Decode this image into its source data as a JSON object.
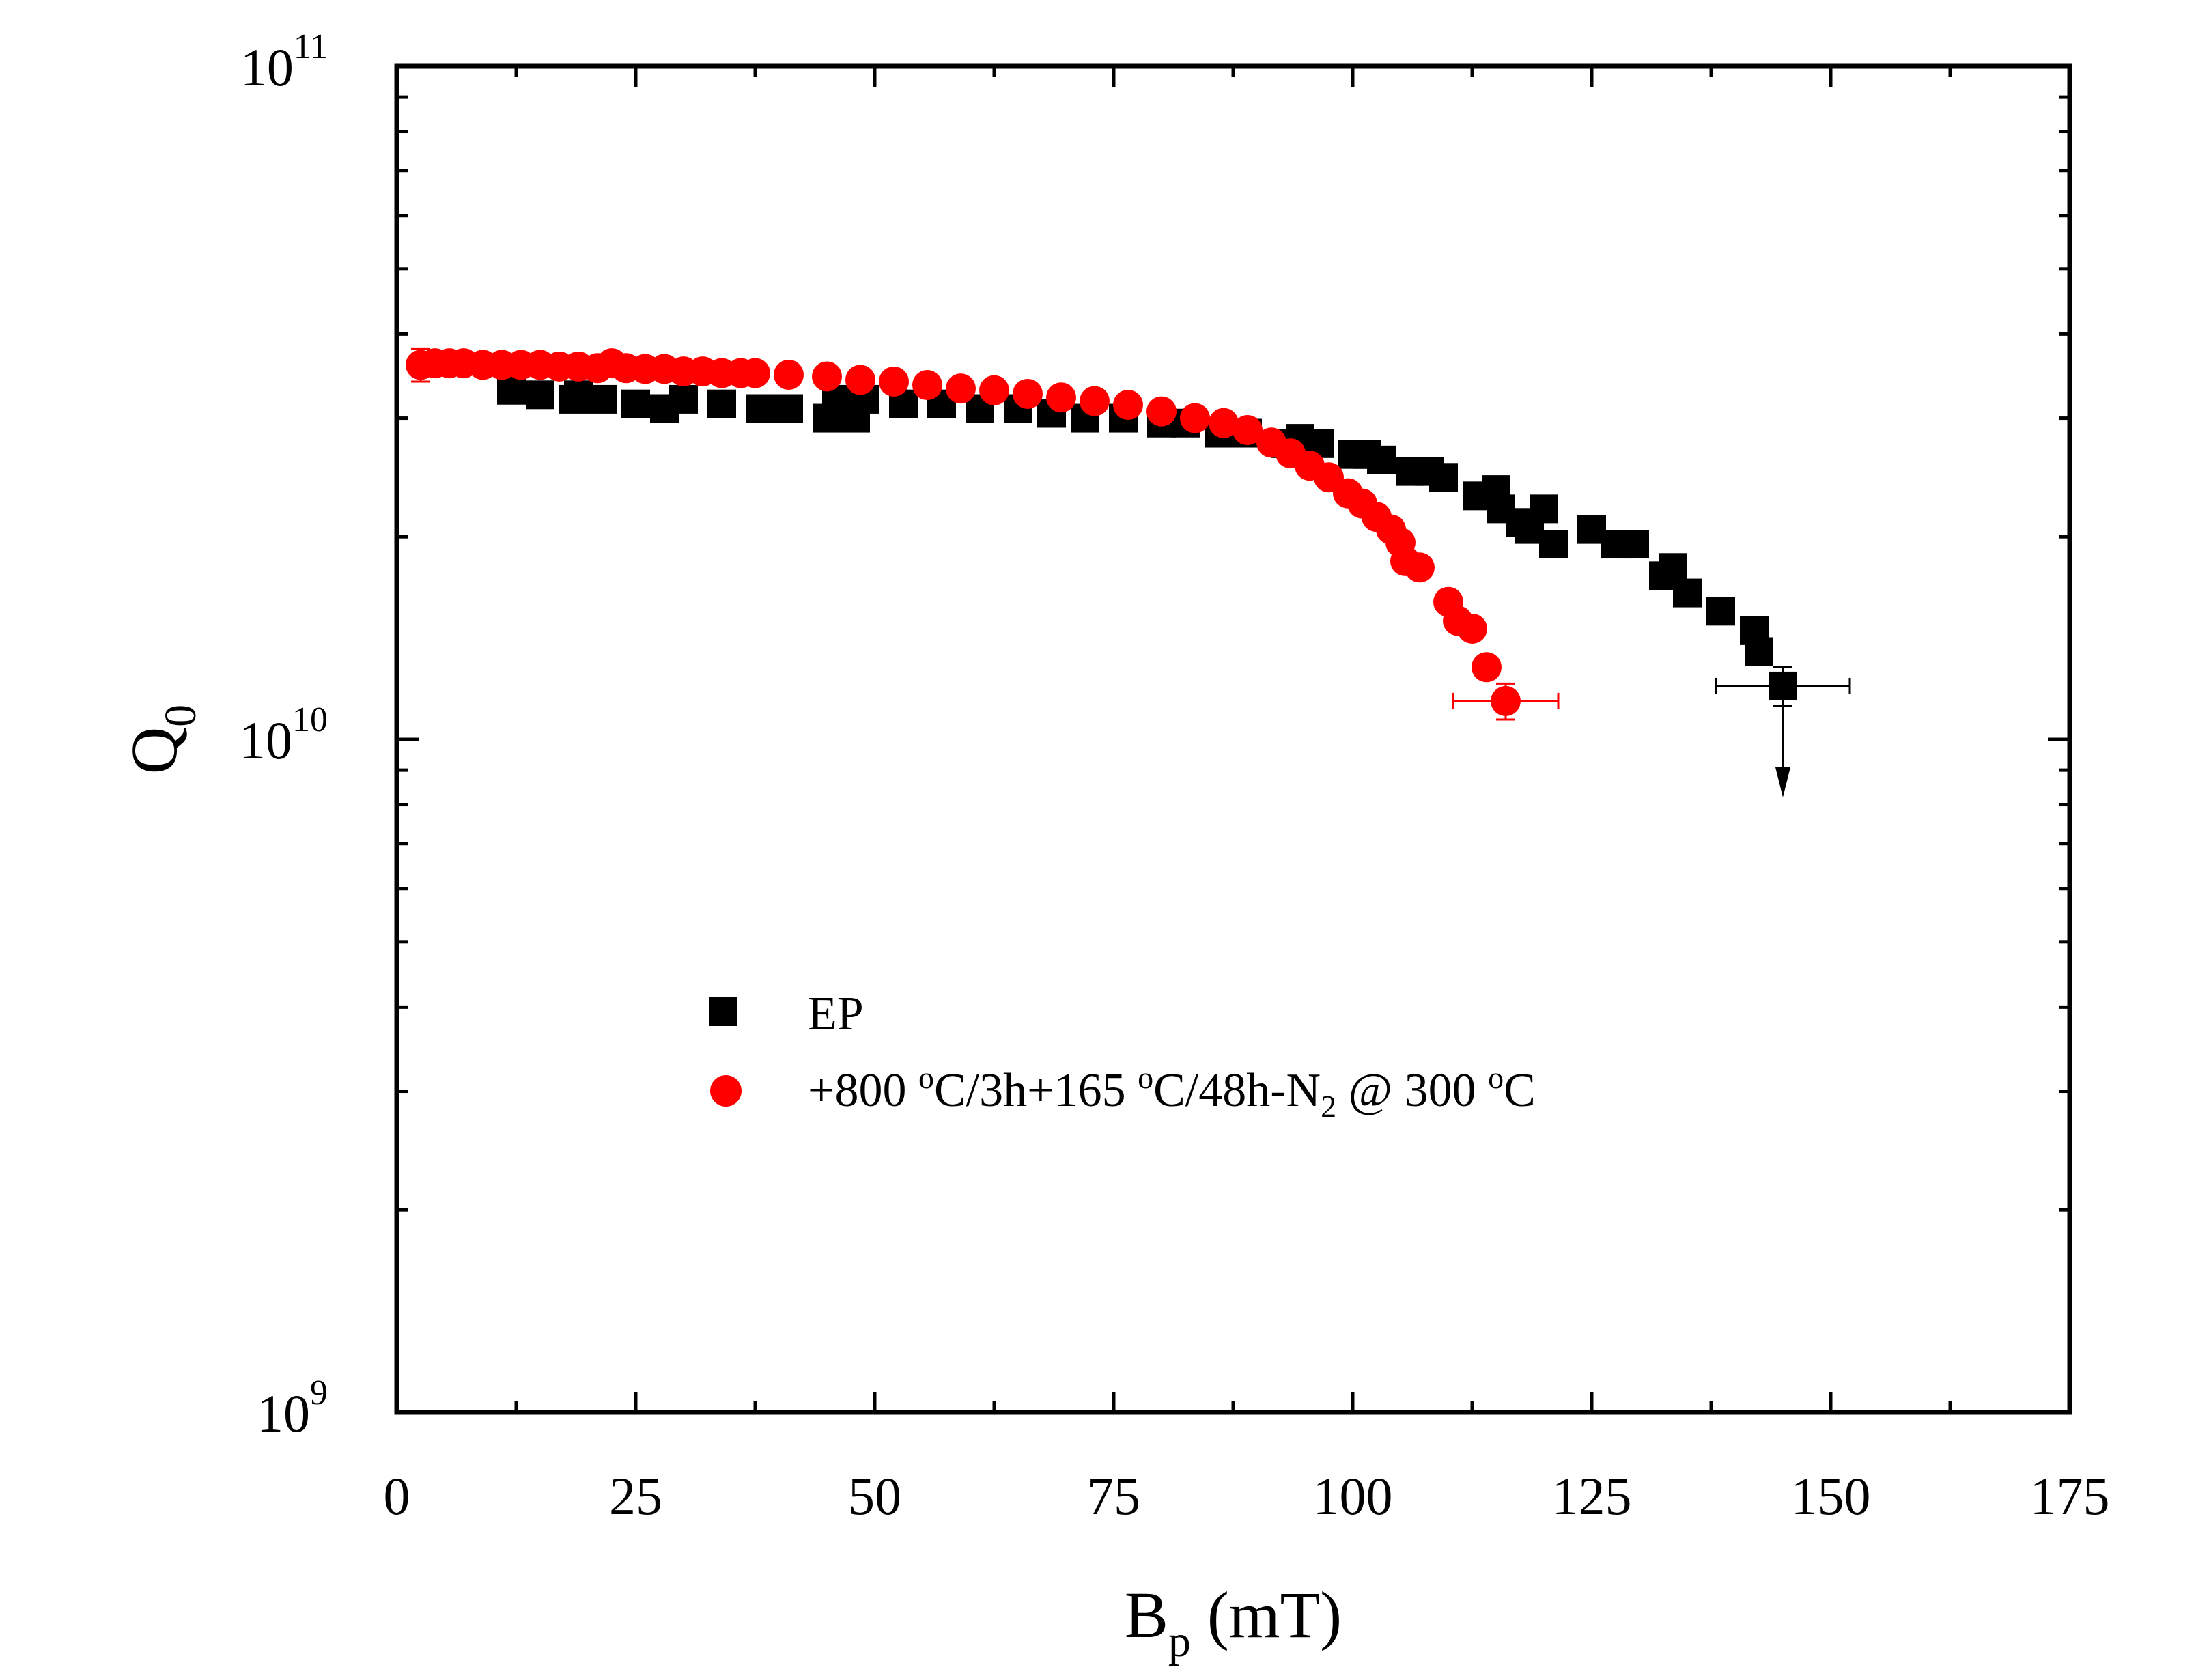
{
  "chart_data": {
    "type": "scatter",
    "xlabel": "B",
    "xlabel_sub": "p",
    "xlabel_units": "(mT)",
    "ylabel": "Q",
    "ylabel_sub": "0",
    "xlim": [
      0,
      175
    ],
    "ylim": [
      1000000000.0,
      100000000000.0
    ],
    "yscale": "log",
    "xticks": [
      0,
      25,
      50,
      75,
      100,
      125,
      150,
      175
    ],
    "yticks": [
      {
        "value": 1000000000.0,
        "base": "10",
        "exp": "9"
      },
      {
        "value": 10000000000.0,
        "base": "10",
        "exp": "10"
      },
      {
        "value": 100000000000.0,
        "base": "10",
        "exp": "11"
      }
    ],
    "legend_position": "center-left",
    "series": [
      {
        "name": "EP",
        "marker": "square",
        "color": "#000000",
        "x": [
          12,
          15,
          18.5,
          19,
          21.5,
          25,
          28,
          30,
          34,
          38,
          41,
          45,
          46,
          48,
          49,
          53,
          57,
          61,
          65,
          68.5,
          72,
          76,
          80,
          82.5,
          86,
          89,
          93,
          94.5,
          96.5,
          100,
          101.5,
          103,
          106,
          108,
          109.5,
          113,
          115,
          115.5,
          117.5,
          118.5,
          120,
          121,
          125,
          127.5,
          129.5,
          132.5,
          133.5,
          135,
          138.5,
          142,
          142.5,
          145
        ],
        "y": [
          33000000000.0,
          32500000000.0,
          32000000000.0,
          32500000000.0,
          32000000000.0,
          31500000000.0,
          31000000000.0,
          32000000000.0,
          31500000000.0,
          31000000000.0,
          31000000000.0,
          30000000000.0,
          32000000000.0,
          30000000000.0,
          32000000000.0,
          31500000000.0,
          31500000000.0,
          31000000000.0,
          31000000000.0,
          30500000000.0,
          30000000000.0,
          30000000000.0,
          29500000000.0,
          29500000000.0,
          28500000000.0,
          28500000000.0,
          27500000000.0,
          28000000000.0,
          27500000000.0,
          26500000000.0,
          26500000000.0,
          26000000000.0,
          25000000000.0,
          25000000000.0,
          24500000000.0,
          23000000000.0,
          23500000000.0,
          22000000000.0,
          21000000000.0,
          20500000000.0,
          22000000000.0,
          19500000000.0,
          20500000000.0,
          19500000000.0,
          19500000000.0,
          17500000000.0,
          18000000000.0,
          16500000000.0,
          15500000000.0,
          14500000000.0,
          13500000000.0,
          12000000000.0
        ],
        "error_point": {
          "x": 145,
          "y": 12000000000.0,
          "xerr": 7,
          "yerr_up": 800000000.0,
          "yerr_down": 800000000.0
        },
        "arrow": {
          "x": 145,
          "from_y": 12000000000.0,
          "to_y": 8200000000.0
        }
      },
      {
        "name": "+800 oC/3h+165 oC/48h-N2 @ 300 oC",
        "marker": "circle",
        "color": "#ff0000",
        "x": [
          2.5,
          4,
          5.5,
          7,
          9,
          11,
          13,
          15,
          17,
          19,
          21,
          22.5,
          24,
          26,
          28,
          30,
          32,
          34,
          36,
          37.5,
          41,
          45,
          48.5,
          52,
          55.5,
          59,
          62.5,
          66,
          69.5,
          73,
          76.5,
          80,
          83.5,
          86.5,
          89,
          91.5,
          93.5,
          95.5,
          97.5,
          99.5,
          101,
          102.5,
          104,
          105,
          105.5,
          107,
          110,
          111,
          112.5,
          114,
          116
        ],
        "y": [
          36000000000.0,
          36200000000.0,
          36200000000.0,
          36200000000.0,
          36000000000.0,
          36000000000.0,
          36000000000.0,
          36000000000.0,
          35800000000.0,
          35800000000.0,
          35600000000.0,
          36200000000.0,
          35600000000.0,
          35500000000.0,
          35500000000.0,
          35200000000.0,
          35200000000.0,
          35000000000.0,
          35000000000.0,
          35000000000.0,
          34800000000.0,
          34600000000.0,
          34200000000.0,
          34000000000.0,
          33600000000.0,
          33200000000.0,
          33000000000.0,
          32600000000.0,
          32200000000.0,
          31800000000.0,
          31400000000.0,
          30700000000.0,
          30000000000.0,
          29500000000.0,
          28800000000.0,
          27600000000.0,
          26600000000.0,
          25500000000.0,
          24500000000.0,
          23200000000.0,
          22400000000.0,
          21400000000.0,
          20500000000.0,
          19600000000.0,
          18400000000.0,
          18000000000.0,
          16000000000.0,
          15000000000.0,
          14600000000.0,
          12800000000.0,
          11400000000.0
        ],
        "error_points": [
          {
            "x": 2.5,
            "y": 36000000000.0,
            "xerr": 0,
            "yerr_up": 2000000000.0,
            "yerr_down": 2000000000.0
          },
          {
            "x": 116,
            "y": 11400000000.0,
            "xerr": 5.5,
            "yerr_up": 700000000.0,
            "yerr_down": 700000000.0
          }
        ]
      }
    ],
    "legend": [
      {
        "label": "EP"
      },
      {
        "label_parts": [
          "+800 ",
          "o",
          "C/3h+165 ",
          "o",
          "C/48h-N",
          "2",
          " @ 300 ",
          "o",
          "C"
        ]
      }
    ]
  }
}
